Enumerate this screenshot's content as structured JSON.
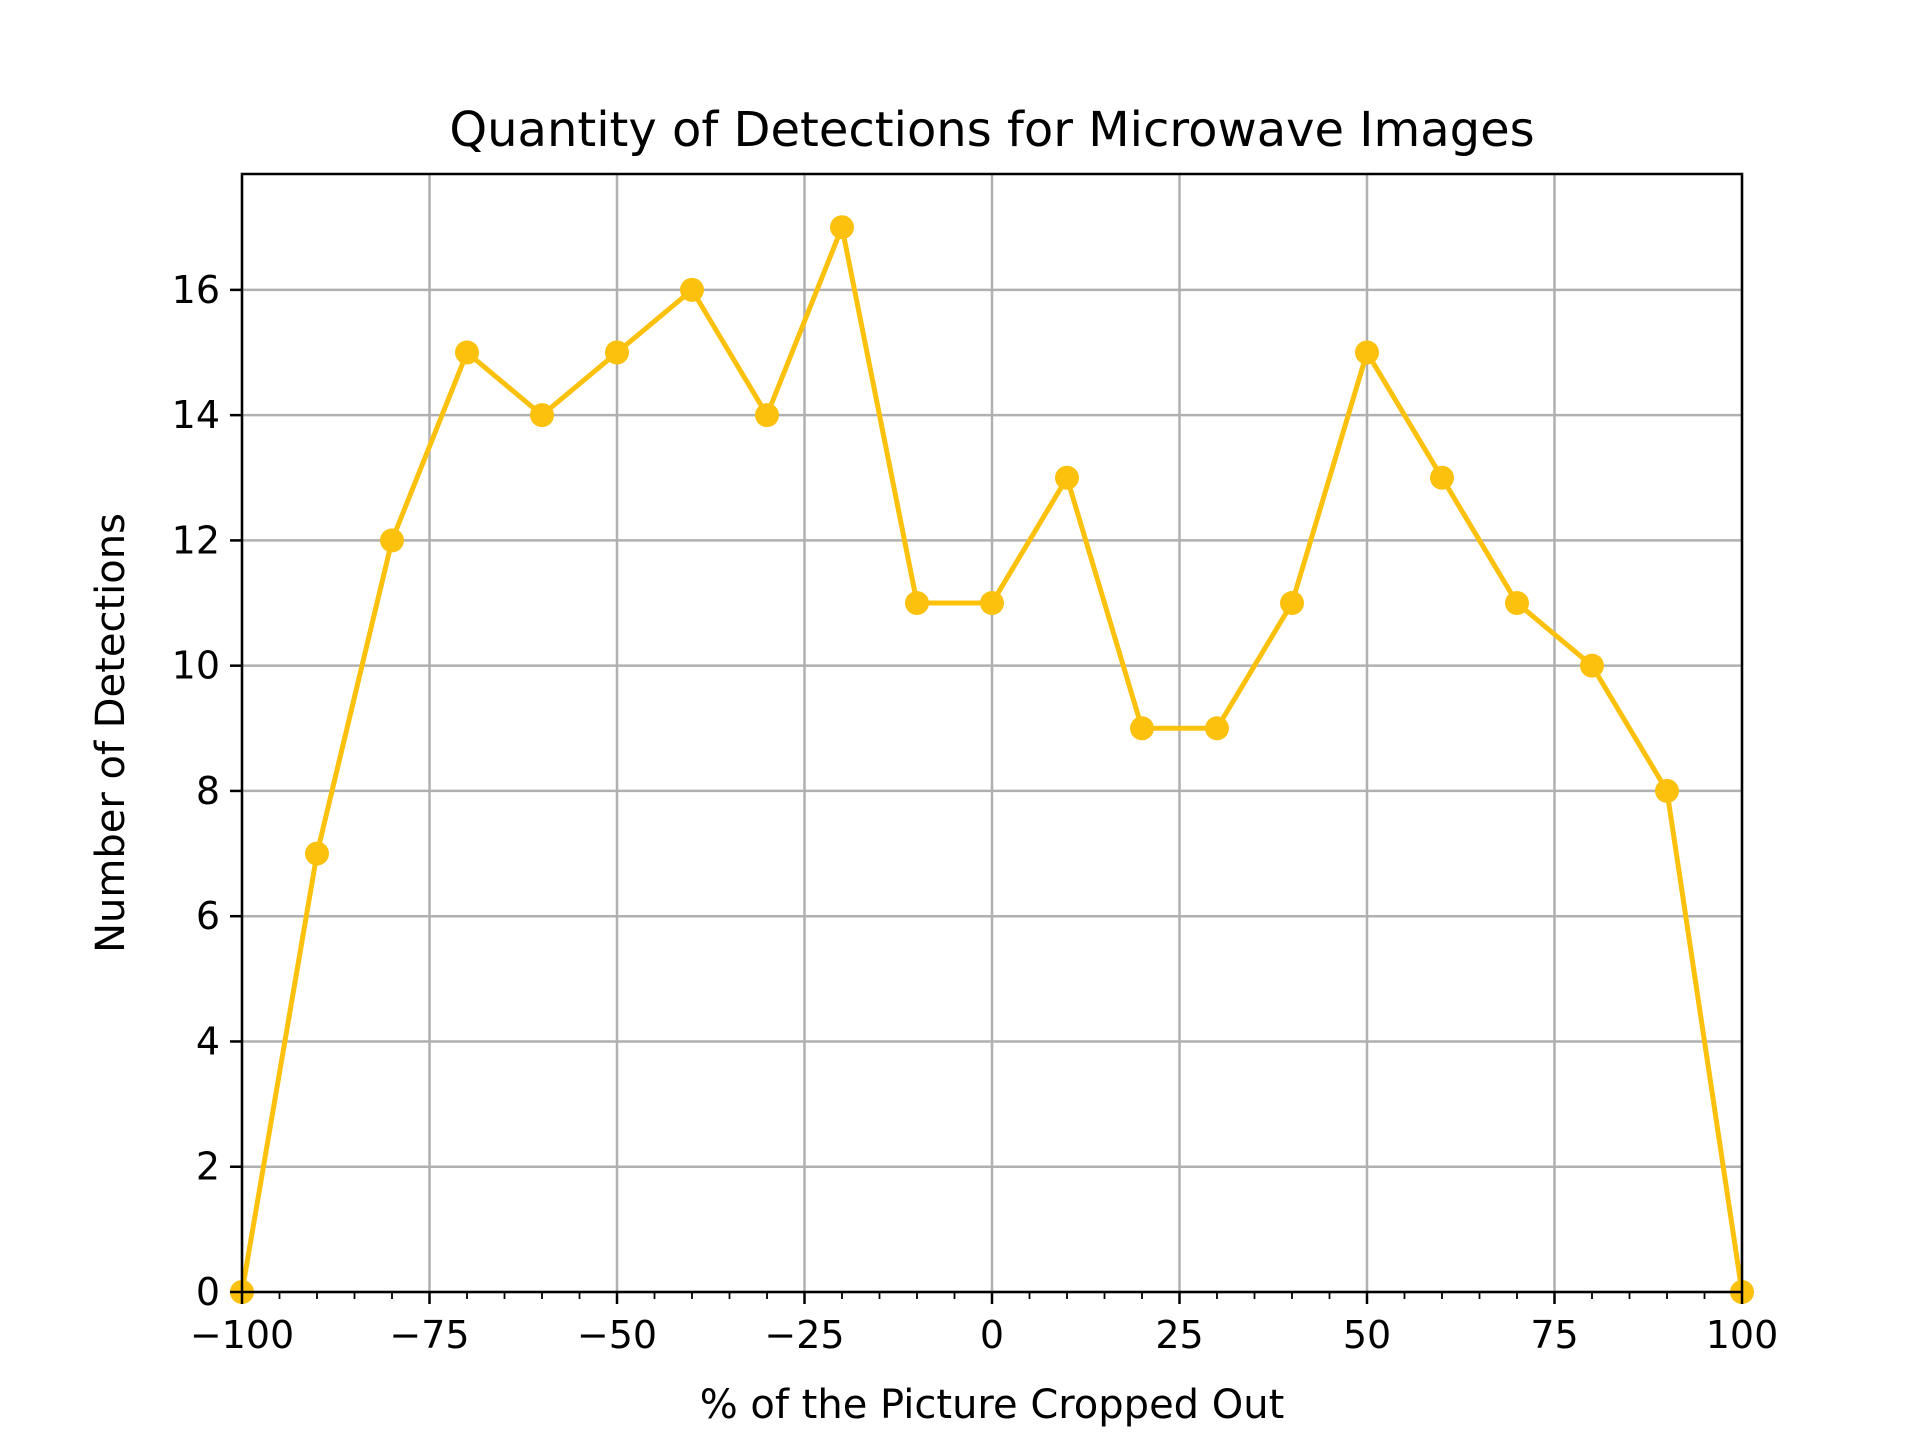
{
  "chart_data": {
    "type": "line",
    "title": "Quantity of Detections for Microwave Images",
    "xlabel": "% of the Picture Cropped Out",
    "ylabel": "Number of Detections",
    "xlim": [
      -100,
      100
    ],
    "ylim": [
      0,
      17.85
    ],
    "xticks": [
      -100,
      -75,
      -50,
      -25,
      0,
      25,
      50,
      75,
      100
    ],
    "xtick_labels": [
      "−100",
      "−75",
      "−50",
      "−25",
      "0",
      "25",
      "50",
      "75",
      "100"
    ],
    "yticks": [
      0,
      2,
      4,
      6,
      8,
      10,
      12,
      14,
      16
    ],
    "ytick_labels": [
      "0",
      "2",
      "4",
      "6",
      "8",
      "10",
      "12",
      "14",
      "16"
    ],
    "grid": true,
    "series": [
      {
        "color": "#fcc10c",
        "marker": "circle",
        "x": [
          -100,
          -90,
          -80,
          -70,
          -60,
          -50,
          -40,
          -30,
          -20,
          -10,
          0,
          10,
          20,
          30,
          40,
          50,
          60,
          70,
          80,
          90,
          100
        ],
        "y": [
          0,
          7,
          12,
          15,
          14,
          15,
          16,
          14,
          17,
          11,
          11,
          13,
          9,
          9,
          11,
          15,
          13,
          11,
          10,
          8,
          0
        ]
      }
    ]
  }
}
